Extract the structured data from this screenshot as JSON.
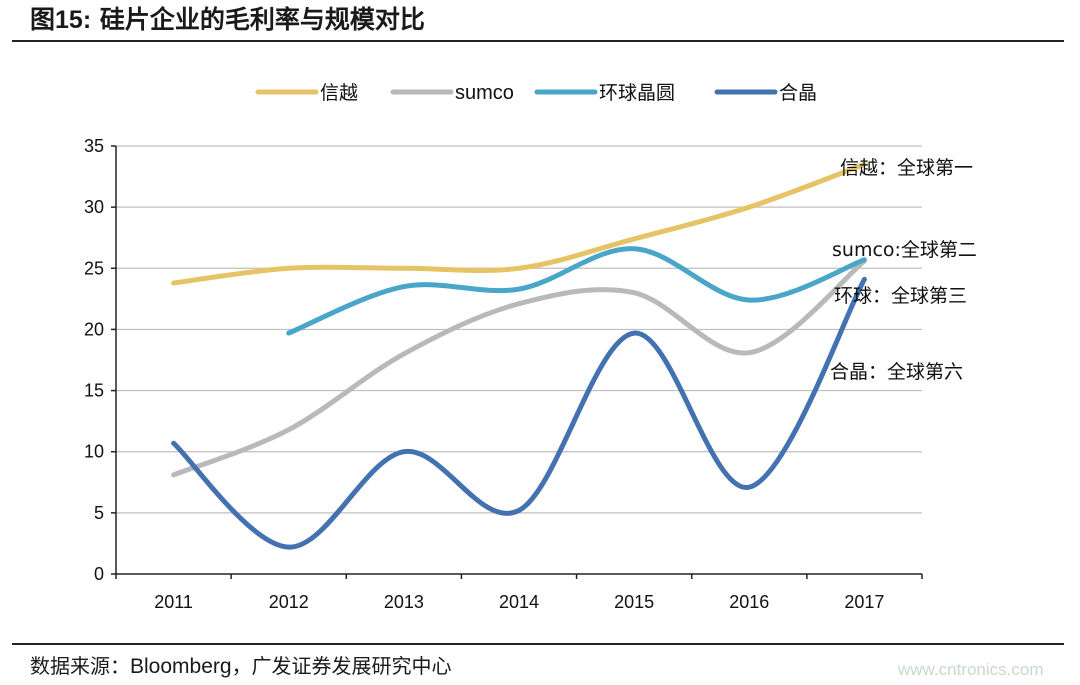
{
  "figure": {
    "title_prefix": "图",
    "title_number": "15:",
    "title_text": "硅片企业的毛利率与规模对比",
    "source_label": "数据来源：",
    "source_en": "Bloomberg",
    "source_rest": "，广发证券发展研究中心",
    "watermark": "www.cntronics.com"
  },
  "chart_data": {
    "type": "line",
    "title": "硅片企业的毛利率与规模对比",
    "xlabel": "",
    "ylabel": "",
    "ylim": [
      0,
      35
    ],
    "yticks": [
      0,
      5,
      10,
      15,
      20,
      25,
      30,
      35
    ],
    "categories": [
      "2011",
      "2012",
      "2013",
      "2014",
      "2015",
      "2016",
      "2017"
    ],
    "grid": true,
    "legend_position": "top",
    "series": [
      {
        "name": "信越",
        "color": "#e6c364",
        "values": [
          23.8,
          25.0,
          25.0,
          25.0,
          27.4,
          30.0,
          33.5
        ]
      },
      {
        "name": "sumco",
        "color": "#b9b9b9",
        "values": [
          8.1,
          11.8,
          18.0,
          22.1,
          23.0,
          18.1,
          25.6
        ]
      },
      {
        "name": "环球晶圆",
        "color": "#4aa6c8",
        "values": [
          null,
          19.7,
          23.5,
          23.3,
          26.6,
          22.4,
          25.7
        ]
      },
      {
        "name": "合晶",
        "color": "#4472b0",
        "values": [
          10.7,
          2.2,
          10.0,
          5.2,
          19.7,
          7.1,
          24.1
        ]
      }
    ],
    "annotations": [
      {
        "text": "信越：全球第一",
        "series": "信越"
      },
      {
        "text": "sumco:全球第二",
        "series": "sumco"
      },
      {
        "text": "环球：全球第三",
        "series": "环球晶圆"
      },
      {
        "text": "合晶：全球第六",
        "series": "合晶"
      }
    ]
  }
}
